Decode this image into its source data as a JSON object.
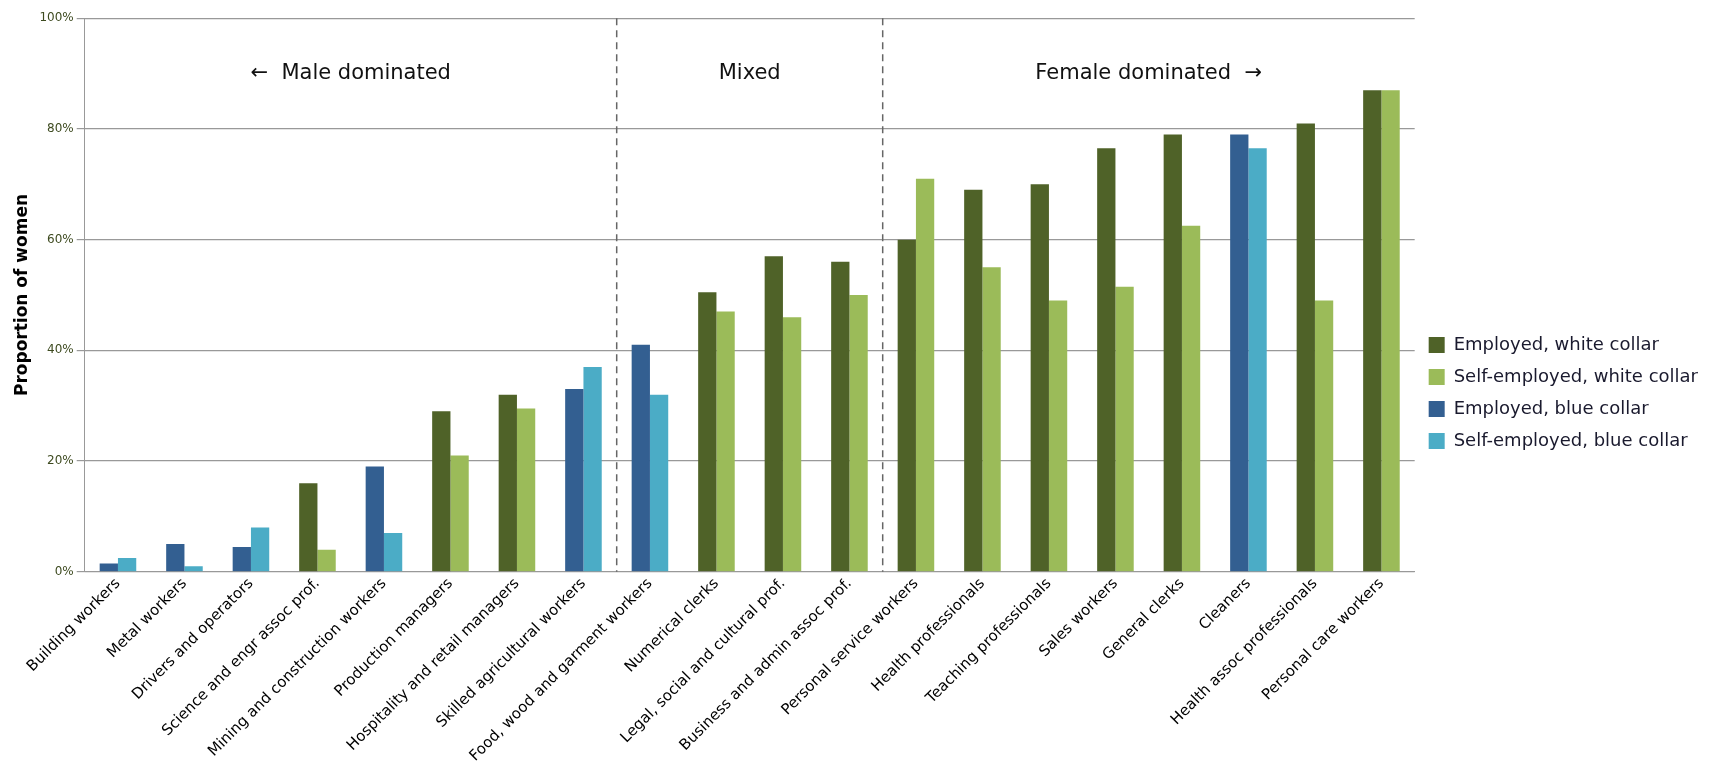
{
  "chart_data": {
    "type": "bar",
    "ylabel": "Proportion of women",
    "categories": [
      "Building workers",
      "Metal workers",
      "Drivers and operators",
      "Science and engr assoc prof.",
      "Mining and construction workers",
      "Production managers",
      "Hospitality and retail managers",
      "Skilled agricultural workers",
      "Food, wood and garment workers",
      "Numerical clerks",
      "Legal, social and cultural prof.",
      "Business and admin assoc prof.",
      "Personal service workers",
      "Health professionals",
      "Teaching professionals",
      "Sales workers",
      "General clerks",
      "Cleaners",
      "Health assoc professionals",
      "Personal care workers"
    ],
    "series": [
      {
        "name": "Employed, white collar",
        "color": "#4f6228",
        "values": [
          null,
          null,
          null,
          16,
          null,
          29,
          32,
          null,
          null,
          50.5,
          57,
          56,
          60,
          69,
          70,
          76.5,
          79,
          null,
          81,
          87
        ]
      },
      {
        "name": "Self-employed, white collar",
        "color": "#9bbb59",
        "values": [
          null,
          null,
          null,
          4,
          null,
          21,
          29.5,
          null,
          null,
          47,
          46,
          50,
          71,
          55,
          49,
          51.5,
          62.5,
          null,
          49,
          87
        ]
      },
      {
        "name": "Employed, blue collar",
        "color": "#335f91",
        "values": [
          1.5,
          5,
          4.5,
          null,
          19,
          null,
          null,
          33,
          41,
          null,
          null,
          null,
          null,
          null,
          null,
          null,
          null,
          79,
          null,
          null
        ]
      },
      {
        "name": "Self-employed, blue collar",
        "color": "#4bacc6",
        "values": [
          2.5,
          1,
          8,
          null,
          7,
          null,
          null,
          37,
          32,
          null,
          null,
          null,
          null,
          null,
          null,
          null,
          null,
          76.5,
          null,
          null
        ]
      }
    ],
    "ylim": [
      0,
      100
    ],
    "yticks": [
      {
        "value": 0,
        "label": "0%"
      },
      {
        "value": 20,
        "label": "20%"
      },
      {
        "value": 40,
        "label": "40%"
      },
      {
        "value": 60,
        "label": "60%"
      },
      {
        "value": 80,
        "label": "80%"
      },
      {
        "value": 100,
        "label": "100%"
      }
    ],
    "grid": "y",
    "legend": "right",
    "annotations": [
      "←  Male dominated",
      "Mixed",
      "Female dominated  →"
    ]
  }
}
